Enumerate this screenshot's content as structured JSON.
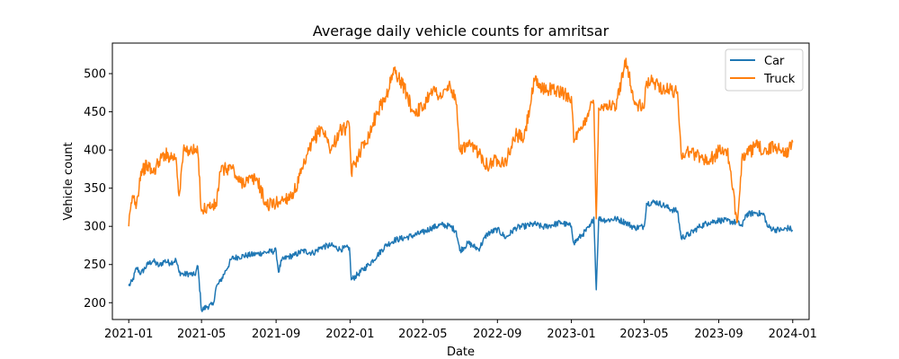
{
  "chart_data": {
    "type": "line",
    "title": "Average daily vehicle counts for amritsar",
    "xlabel": "Date",
    "ylabel": "Vehicle count",
    "x_axis": {
      "type": "date",
      "range": [
        "2020-12-05",
        "2024-01-28"
      ],
      "ticks": [
        "2021-01-01",
        "2021-05-01",
        "2021-09-01",
        "2022-01-01",
        "2022-05-01",
        "2022-09-01",
        "2023-01-01",
        "2023-05-01",
        "2023-09-01",
        "2024-01-01"
      ],
      "tick_labels": [
        "2021-01",
        "2021-05",
        "2021-09",
        "2022-01",
        "2022-05",
        "2022-09",
        "2023-01",
        "2023-05",
        "2023-09",
        "2024-01"
      ]
    },
    "y_axis": {
      "range": [
        178,
        540
      ],
      "ticks": [
        200,
        250,
        300,
        350,
        400,
        450,
        500
      ],
      "tick_labels": [
        "200",
        "250",
        "300",
        "350",
        "400",
        "450",
        "500"
      ]
    },
    "grid": false,
    "legend": {
      "position": "top-right",
      "entries": [
        "Car",
        "Truck"
      ]
    },
    "series": [
      {
        "name": "Car",
        "color": "#1f77b4",
        "points": [
          [
            "2021-01-01",
            222
          ],
          [
            "2021-01-07",
            228
          ],
          [
            "2021-01-14",
            246
          ],
          [
            "2021-01-21",
            238
          ],
          [
            "2021-02-01",
            250
          ],
          [
            "2021-02-10",
            255
          ],
          [
            "2021-02-20",
            248
          ],
          [
            "2021-03-01",
            255
          ],
          [
            "2021-03-10",
            252
          ],
          [
            "2021-03-20",
            256
          ],
          [
            "2021-03-25",
            240
          ],
          [
            "2021-04-01",
            237
          ],
          [
            "2021-04-10",
            238
          ],
          [
            "2021-04-20",
            236
          ],
          [
            "2021-04-25",
            248
          ],
          [
            "2021-05-01",
            190
          ],
          [
            "2021-05-10",
            195
          ],
          [
            "2021-05-20",
            197
          ],
          [
            "2021-05-25",
            220
          ],
          [
            "2021-06-01",
            228
          ],
          [
            "2021-06-10",
            242
          ],
          [
            "2021-06-20",
            258
          ],
          [
            "2021-07-01",
            260
          ],
          [
            "2021-07-15",
            262
          ],
          [
            "2021-08-01",
            264
          ],
          [
            "2021-08-15",
            266
          ],
          [
            "2021-09-01",
            268
          ],
          [
            "2021-09-05",
            240
          ],
          [
            "2021-09-10",
            255
          ],
          [
            "2021-09-20",
            260
          ],
          [
            "2021-10-01",
            262
          ],
          [
            "2021-10-15",
            268
          ],
          [
            "2021-11-01",
            265
          ],
          [
            "2021-11-15",
            273
          ],
          [
            "2021-12-01",
            275
          ],
          [
            "2021-12-15",
            270
          ],
          [
            "2021-12-31",
            272
          ],
          [
            "2022-01-03",
            230
          ],
          [
            "2022-01-15",
            238
          ],
          [
            "2022-02-01",
            250
          ],
          [
            "2022-02-15",
            262
          ],
          [
            "2022-03-01",
            275
          ],
          [
            "2022-03-15",
            282
          ],
          [
            "2022-04-01",
            285
          ],
          [
            "2022-04-15",
            288
          ],
          [
            "2022-05-01",
            292
          ],
          [
            "2022-05-15",
            298
          ],
          [
            "2022-06-01",
            302
          ],
          [
            "2022-06-15",
            300
          ],
          [
            "2022-06-25",
            294
          ],
          [
            "2022-07-01",
            268
          ],
          [
            "2022-07-15",
            278
          ],
          [
            "2022-08-01",
            270
          ],
          [
            "2022-08-15",
            290
          ],
          [
            "2022-09-01",
            296
          ],
          [
            "2022-09-15",
            285
          ],
          [
            "2022-10-01",
            298
          ],
          [
            "2022-10-15",
            300
          ],
          [
            "2022-11-01",
            303
          ],
          [
            "2022-11-15",
            299
          ],
          [
            "2022-12-01",
            302
          ],
          [
            "2022-12-15",
            305
          ],
          [
            "2023-01-01",
            300
          ],
          [
            "2023-01-05",
            278
          ],
          [
            "2023-01-20",
            290
          ],
          [
            "2023-02-01",
            300
          ],
          [
            "2023-02-07",
            312
          ],
          [
            "2023-02-11",
            217
          ],
          [
            "2023-02-15",
            310
          ],
          [
            "2023-03-01",
            308
          ],
          [
            "2023-03-15",
            310
          ],
          [
            "2023-04-01",
            305
          ],
          [
            "2023-04-15",
            298
          ],
          [
            "2023-05-01",
            300
          ],
          [
            "2023-05-05",
            330
          ],
          [
            "2023-05-20",
            332
          ],
          [
            "2023-06-01",
            328
          ],
          [
            "2023-06-15",
            322
          ],
          [
            "2023-06-25",
            320
          ],
          [
            "2023-07-01",
            285
          ],
          [
            "2023-07-15",
            290
          ],
          [
            "2023-08-01",
            300
          ],
          [
            "2023-08-15",
            305
          ],
          [
            "2023-09-01",
            308
          ],
          [
            "2023-09-15",
            307
          ],
          [
            "2023-10-01",
            305
          ],
          [
            "2023-10-10",
            300
          ],
          [
            "2023-10-15",
            315
          ],
          [
            "2023-11-01",
            318
          ],
          [
            "2023-11-15",
            315
          ],
          [
            "2023-11-20",
            300
          ],
          [
            "2023-12-01",
            296
          ],
          [
            "2023-12-15",
            295
          ],
          [
            "2023-12-25",
            298
          ],
          [
            "2024-01-01",
            295
          ]
        ]
      },
      {
        "name": "Truck",
        "color": "#ff7f0e",
        "points": [
          [
            "2021-01-01",
            300
          ],
          [
            "2021-01-07",
            340
          ],
          [
            "2021-01-14",
            330
          ],
          [
            "2021-01-21",
            372
          ],
          [
            "2021-02-01",
            380
          ],
          [
            "2021-02-10",
            370
          ],
          [
            "2021-02-20",
            385
          ],
          [
            "2021-03-01",
            395
          ],
          [
            "2021-03-10",
            392
          ],
          [
            "2021-03-20",
            390
          ],
          [
            "2021-03-25",
            340
          ],
          [
            "2021-04-01",
            398
          ],
          [
            "2021-04-10",
            400
          ],
          [
            "2021-04-20",
            398
          ],
          [
            "2021-04-25",
            396
          ],
          [
            "2021-05-01",
            320
          ],
          [
            "2021-05-10",
            325
          ],
          [
            "2021-05-20",
            327
          ],
          [
            "2021-05-25",
            326
          ],
          [
            "2021-06-01",
            372
          ],
          [
            "2021-06-10",
            375
          ],
          [
            "2021-06-20",
            378
          ],
          [
            "2021-07-01",
            358
          ],
          [
            "2021-07-15",
            360
          ],
          [
            "2021-08-01",
            362
          ],
          [
            "2021-08-15",
            328
          ],
          [
            "2021-09-01",
            330
          ],
          [
            "2021-09-05",
            332
          ],
          [
            "2021-09-10",
            334
          ],
          [
            "2021-09-20",
            338
          ],
          [
            "2021-10-01",
            345
          ],
          [
            "2021-10-15",
            375
          ],
          [
            "2021-11-01",
            412
          ],
          [
            "2021-11-15",
            430
          ],
          [
            "2021-12-01",
            400
          ],
          [
            "2021-12-15",
            425
          ],
          [
            "2021-12-31",
            430
          ],
          [
            "2022-01-03",
            370
          ],
          [
            "2022-01-15",
            395
          ],
          [
            "2022-02-01",
            420
          ],
          [
            "2022-02-15",
            450
          ],
          [
            "2022-03-01",
            470
          ],
          [
            "2022-03-15",
            505
          ],
          [
            "2022-04-01",
            480
          ],
          [
            "2022-04-15",
            450
          ],
          [
            "2022-05-01",
            455
          ],
          [
            "2022-05-15",
            480
          ],
          [
            "2022-06-01",
            470
          ],
          [
            "2022-06-15",
            485
          ],
          [
            "2022-06-25",
            460
          ],
          [
            "2022-07-01",
            400
          ],
          [
            "2022-07-15",
            405
          ],
          [
            "2022-08-01",
            398
          ],
          [
            "2022-08-15",
            380
          ],
          [
            "2022-09-01",
            388
          ],
          [
            "2022-09-15",
            385
          ],
          [
            "2022-10-01",
            420
          ],
          [
            "2022-10-15",
            415
          ],
          [
            "2022-11-01",
            490
          ],
          [
            "2022-11-15",
            480
          ],
          [
            "2022-12-01",
            480
          ],
          [
            "2022-12-15",
            475
          ],
          [
            "2023-01-01",
            470
          ],
          [
            "2023-01-05",
            410
          ],
          [
            "2023-01-20",
            430
          ],
          [
            "2023-02-01",
            458
          ],
          [
            "2023-02-07",
            460
          ],
          [
            "2023-02-11",
            310
          ],
          [
            "2023-02-15",
            455
          ],
          [
            "2023-03-01",
            460
          ],
          [
            "2023-03-15",
            455
          ],
          [
            "2023-04-01",
            520
          ],
          [
            "2023-04-15",
            460
          ],
          [
            "2023-05-01",
            455
          ],
          [
            "2023-05-05",
            490
          ],
          [
            "2023-05-20",
            488
          ],
          [
            "2023-06-01",
            480
          ],
          [
            "2023-06-15",
            478
          ],
          [
            "2023-06-25",
            476
          ],
          [
            "2023-07-01",
            395
          ],
          [
            "2023-07-15",
            398
          ],
          [
            "2023-08-01",
            392
          ],
          [
            "2023-08-15",
            385
          ],
          [
            "2023-09-01",
            398
          ],
          [
            "2023-09-15",
            400
          ],
          [
            "2023-10-01",
            305
          ],
          [
            "2023-10-10",
            395
          ],
          [
            "2023-10-15",
            392
          ],
          [
            "2023-11-01",
            405
          ],
          [
            "2023-11-15",
            400
          ],
          [
            "2023-11-20",
            398
          ],
          [
            "2023-12-01",
            405
          ],
          [
            "2023-12-15",
            400
          ],
          [
            "2023-12-25",
            398
          ],
          [
            "2024-01-01",
            410
          ]
        ]
      }
    ]
  }
}
